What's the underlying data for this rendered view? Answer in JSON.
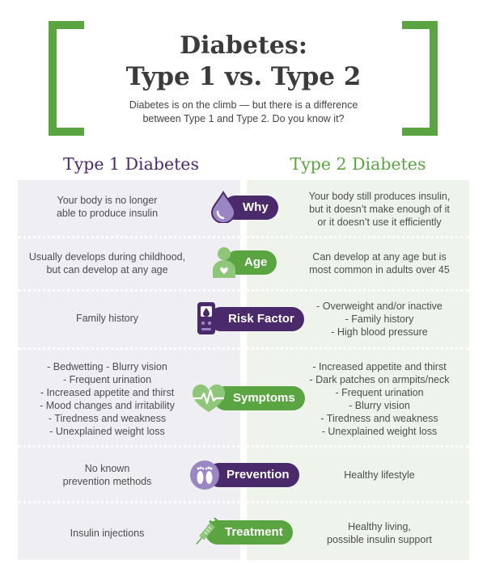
{
  "header": {
    "title_line1": "Diabetes:",
    "title_line2": "Type 1 vs. Type 2",
    "subtitle_line1": "Diabetes is on the climb — but there is a difference",
    "subtitle_line2": "between Type 1 and Type 2. Do you know it?"
  },
  "columns": {
    "type1": "Type 1 Diabetes",
    "type2": "Type 2 Diabetes"
  },
  "rows": [
    {
      "label": "Why",
      "icon": "blood-drop-icon",
      "color": "purple",
      "type1": [
        "Your body is no longer",
        "able to produce insulin"
      ],
      "type2": [
        "Your body still produces insulin,",
        "but it doesn’t make enough of it",
        "or it doesn’t use it efficiently"
      ]
    },
    {
      "label": "Age",
      "icon": "person-icon",
      "color": "green",
      "type1": [
        "Usually develops during childhood,",
        "but can develop at any age"
      ],
      "type2": [
        "Can develop at any age but is",
        "most common in adults over 45"
      ]
    },
    {
      "label": "Risk Factor",
      "icon": "glucose-meter-icon",
      "color": "purple",
      "type1": [
        "Family history"
      ],
      "type2": [
        "- Overweight and/or inactive",
        "- Family history",
        "- High blood pressure"
      ]
    },
    {
      "label": "Symptoms",
      "icon": "heart-pulse-icon",
      "color": "green",
      "type1": [
        "- Bedwetting    - Blurry vision",
        "- Frequent urination",
        "- Increased appetite and thirst",
        "- Mood changes and irritability",
        "- Tiredness and weakness",
        "- Unexplained weight loss"
      ],
      "type2": [
        "- Increased appetite and thirst",
        "- Dark patches on armpits/neck",
        "- Frequent urination",
        "- Blurry vision",
        "- Tiredness and weakness",
        "- Unexplained weight loss"
      ]
    },
    {
      "label": "Prevention",
      "icon": "feet-icon",
      "color": "purple",
      "type1": [
        "No known",
        "prevention methods"
      ],
      "type2": [
        "Healthy lifestyle"
      ]
    },
    {
      "label": "Treatment",
      "icon": "syringe-icon",
      "color": "green",
      "type1": [
        "Insulin injections"
      ],
      "type2": [
        "Healthy living,",
        "possible insulin support"
      ]
    }
  ],
  "colors": {
    "purple": "#4a2a6b",
    "green": "#5aa541"
  }
}
